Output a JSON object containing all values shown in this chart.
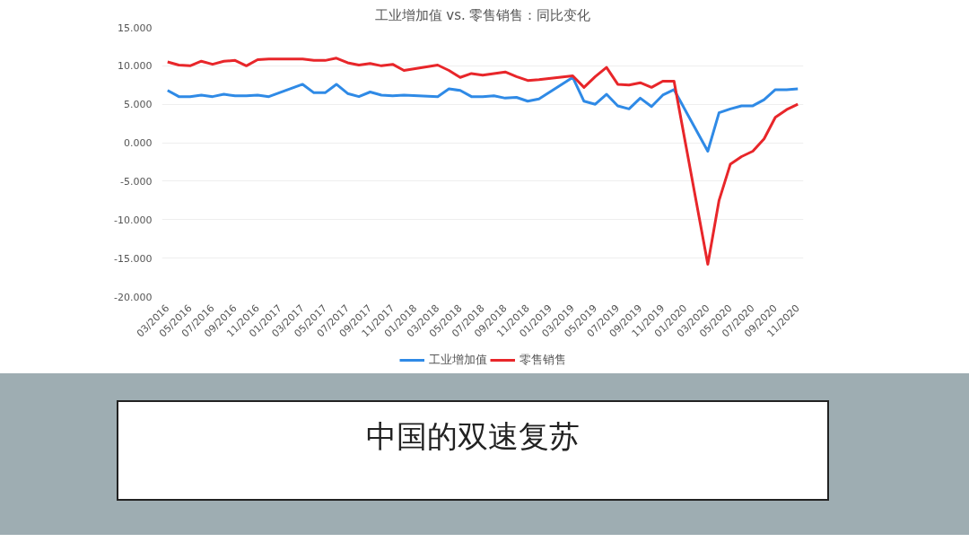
{
  "chart_data": {
    "type": "line",
    "title": "工业增加值 vs. 零售销售：同比变化",
    "categories": [
      "03/2016",
      null,
      "05/2016",
      null,
      "07/2016",
      null,
      "09/2016",
      null,
      "11/2016",
      null,
      "01/2017",
      null,
      "03/2017",
      null,
      "05/2017",
      null,
      "07/2017",
      null,
      "09/2017",
      null,
      "11/2017",
      null,
      "01/2018",
      null,
      "03/2018",
      null,
      "05/2018",
      null,
      "07/2018",
      null,
      "09/2018",
      null,
      "11/2018",
      null,
      "01/2019",
      null,
      "03/2019",
      null,
      "05/2019",
      null,
      "07/2019",
      null,
      "09/2019",
      null,
      "11/2019",
      null,
      "01/2020",
      null,
      "03/2020",
      null,
      "05/2020",
      null,
      "07/2020",
      null,
      "09/2020",
      null,
      "11/2020"
    ],
    "series": [
      {
        "name": "工业增加值",
        "color": "#2f8ae6",
        "values": [
          6.8,
          6.0,
          6.0,
          6.2,
          6.0,
          6.3,
          6.1,
          6.1,
          6.2,
          6.0,
          null,
          null,
          7.6,
          6.5,
          6.5,
          7.6,
          6.4,
          6.0,
          6.6,
          6.2,
          6.1,
          6.2,
          null,
          null,
          6.0,
          7.0,
          6.8,
          6.0,
          6.0,
          6.1,
          5.8,
          5.9,
          5.4,
          5.7,
          null,
          null,
          8.5,
          5.4,
          5.0,
          6.3,
          4.8,
          4.4,
          5.8,
          4.7,
          6.2,
          6.9,
          null,
          null,
          -1.1,
          3.9,
          4.4,
          4.8,
          4.8,
          5.6,
          6.9,
          6.9,
          7.0
        ]
      },
      {
        "name": "零售销售",
        "color": "#e8262a",
        "values": [
          10.5,
          10.1,
          10.0,
          10.6,
          10.2,
          10.6,
          10.7,
          10.0,
          10.8,
          10.9,
          null,
          null,
          10.9,
          10.7,
          10.7,
          11.0,
          10.4,
          10.1,
          10.3,
          10.0,
          10.2,
          9.4,
          null,
          null,
          10.1,
          9.4,
          8.5,
          9.0,
          8.8,
          9.0,
          9.2,
          8.6,
          8.1,
          8.2,
          null,
          null,
          8.7,
          7.2,
          8.6,
          9.8,
          7.6,
          7.5,
          7.8,
          7.2,
          8.0,
          8.0,
          null,
          null,
          -15.8,
          -7.5,
          -2.8,
          -1.8,
          -1.1,
          0.5,
          3.3,
          4.3,
          5.0
        ]
      }
    ],
    "ylim": [
      -20,
      15
    ],
    "yticks": [
      {
        "value": -20,
        "label": "-20.000"
      },
      {
        "value": -15,
        "label": "-15.000"
      },
      {
        "value": -10,
        "label": "-10.000"
      },
      {
        "value": -5,
        "label": "-5.000"
      },
      {
        "value": 0,
        "label": "0.000"
      },
      {
        "value": 5,
        "label": "5.000"
      },
      {
        "value": 10,
        "label": "10.000"
      },
      {
        "value": 15,
        "label": "15.000"
      }
    ],
    "grid": "y",
    "legend": "bottom",
    "marker": "none",
    "line_style": "solid",
    "annotations": [
      "中国的双速复苏"
    ]
  }
}
